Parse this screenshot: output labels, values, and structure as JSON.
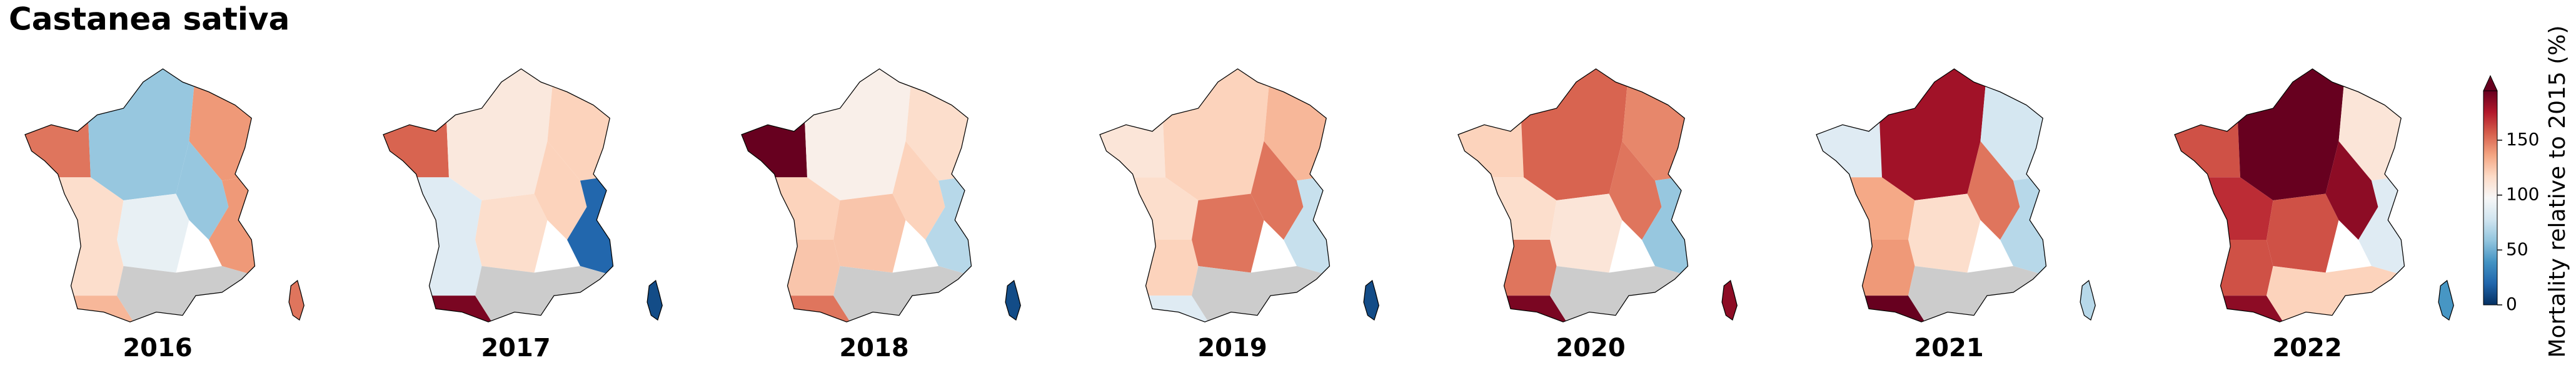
{
  "chart_data": {
    "type": "map",
    "title": "Castanea sativa",
    "cmap": [
      "#053061",
      "#2166ac",
      "#4393c3",
      "#92c5de",
      "#d1e5f0",
      "#f7f7f7",
      "#fddbc7",
      "#f4a582",
      "#d6604d",
      "#b2182b",
      "#67001f"
    ],
    "missing_color": "#cccccc",
    "panels": [
      {
        "title": "2016",
        "values": [
          150,
          60,
          140,
          115,
          90,
          60,
          140,
          115,
          130,
          null,
          150
        ]
      },
      {
        "title": "2017",
        "values": [
          155,
          108,
          120,
          85,
          115,
          120,
          20,
          85,
          190,
          null,
          10
        ]
      },
      {
        "title": "2018",
        "values": [
          195,
          103,
          115,
          120,
          125,
          120,
          70,
          125,
          150,
          null,
          10
        ]
      },
      {
        "title": "2019",
        "values": [
          110,
          120,
          130,
          115,
          150,
          150,
          75,
          120,
          85,
          null,
          10
        ]
      },
      {
        "title": "2020",
        "values": [
          120,
          155,
          145,
          115,
          110,
          150,
          60,
          150,
          190,
          null,
          185
        ]
      },
      {
        "title": "2021",
        "values": [
          85,
          180,
          80,
          135,
          115,
          150,
          70,
          140,
          195,
          null,
          70
        ]
      },
      {
        "title": "2022",
        "values": [
          160,
          200,
          110,
          170,
          160,
          185,
          85,
          160,
          185,
          120,
          40
        ]
      }
    ],
    "colorbar": {
      "label": "Mortality relative to 2015 (%)",
      "lim": [
        0,
        195
      ],
      "ticks": [
        0,
        50,
        100,
        150
      ],
      "extend": "max"
    }
  }
}
